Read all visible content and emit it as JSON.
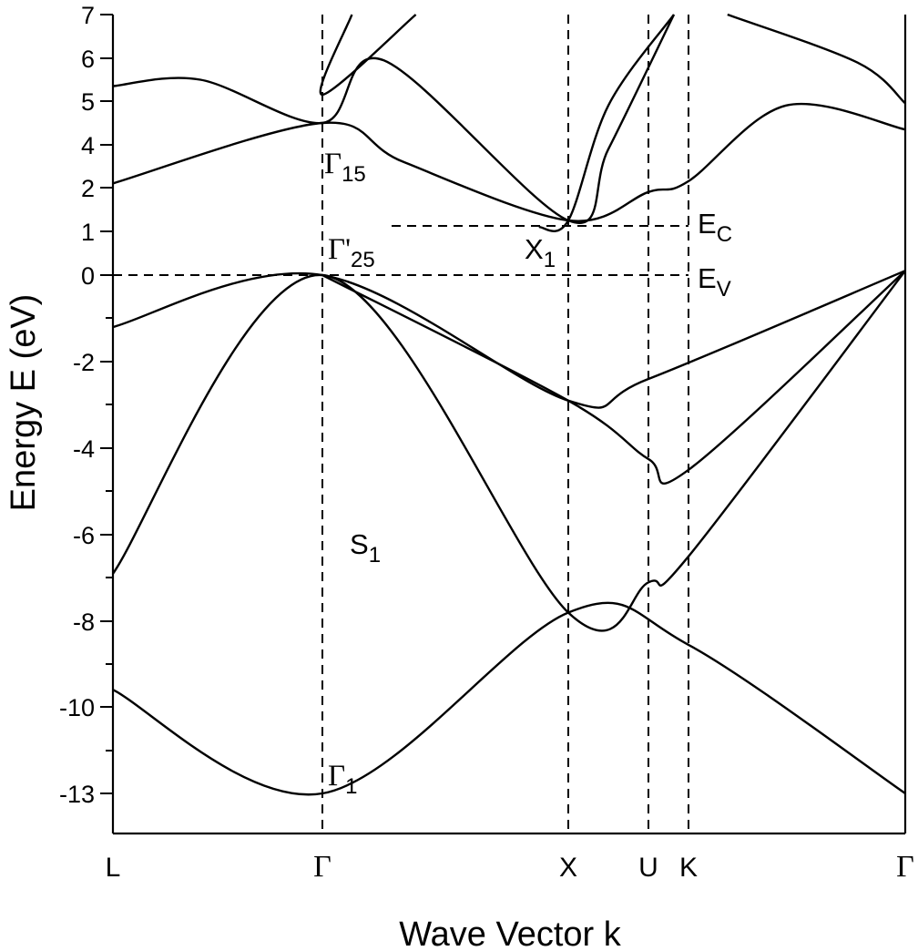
{
  "chart_data": {
    "type": "line",
    "title": "",
    "xlabel": "Wave Vector k",
    "ylabel": "Energy E (eV)",
    "grid": false,
    "legend": "none",
    "y_tick_labels": [
      "7",
      "6",
      "5",
      "4",
      "2",
      "1",
      "0",
      "-2",
      "-4",
      "-6",
      "-8",
      "-10",
      "-13"
    ],
    "x_tick_labels": [
      "L",
      "Γ",
      "X",
      "U",
      "K",
      "Γ"
    ],
    "annotations": [
      {
        "base": "Γ",
        "sub": "15"
      },
      {
        "base": "Γ'",
        "sub": "25"
      },
      {
        "base": "X",
        "sub": "1"
      },
      {
        "base": "E",
        "sub": "C"
      },
      {
        "base": "E",
        "sub": "V"
      },
      {
        "base": "S",
        "sub": "1"
      },
      {
        "base": "Γ",
        "sub": "1"
      }
    ],
    "reference_levels": {
      "E_C": 1.1,
      "E_V": 0
    },
    "series": [
      {
        "points": [
          [
            "L",
            5.35
          ],
          [
            "L→Γ mid",
            5.5
          ],
          [
            "Γ",
            4.5
          ],
          [
            "Γ→X 25%",
            5.95
          ],
          [
            "X",
            1.25
          ],
          [
            "X→U 50%",
            3.8
          ],
          [
            "above U",
            7.0
          ]
        ]
      },
      {
        "points": [
          [
            "L",
            2.2
          ],
          [
            "Γ",
            4.5
          ],
          [
            "Γ→X 33%",
            3.2
          ],
          [
            "X",
            1.25
          ],
          [
            "U",
            1.9
          ],
          [
            "K",
            2.3
          ],
          [
            "K→Γ 45%",
            4.9
          ],
          [
            "Γ",
            4.35
          ]
        ]
      },
      {
        "points": [
          [
            "Γ→X 12%",
            7.0
          ],
          [
            "Γ",
            5.15
          ],
          [
            "Γ→X 38%",
            7.0
          ]
        ]
      },
      {
        "points": [
          [
            "K→Γ 18%",
            7.0
          ],
          [
            "K→Γ 78%",
            5.9
          ],
          [
            "Γ",
            4.95
          ]
        ]
      },
      {
        "points": [
          [
            "Γ→X 88%",
            1.1
          ],
          [
            "X",
            1.25
          ],
          [
            "X→U 50%",
            4.9
          ],
          [
            "above U",
            7.0
          ]
        ]
      },
      {
        "points": [
          [
            "L",
            -1.2
          ],
          [
            "Γ",
            0.0
          ],
          [
            "X",
            -2.9
          ],
          [
            "U",
            -2.4
          ],
          [
            "Γ",
            0.1
          ]
        ]
      },
      {
        "points": [
          [
            "Γ",
            0.0
          ],
          [
            "X",
            -2.9
          ],
          [
            "U",
            -4.25
          ],
          [
            "K",
            -4.5
          ],
          [
            "Γ",
            0.1
          ]
        ]
      },
      {
        "points": [
          [
            "L",
            -6.9
          ],
          [
            "Γ",
            0.0
          ],
          [
            "X",
            -7.8
          ],
          [
            "U",
            -7.1
          ],
          [
            "K",
            -6.5
          ],
          [
            "Γ",
            0.1
          ]
        ]
      },
      {
        "points": [
          [
            "L",
            -9.6
          ],
          [
            "Γ",
            -13.3
          ],
          [
            "X",
            -7.8
          ],
          [
            "K",
            -8.55
          ],
          [
            "Γ",
            -13.2
          ]
        ]
      }
    ]
  }
}
